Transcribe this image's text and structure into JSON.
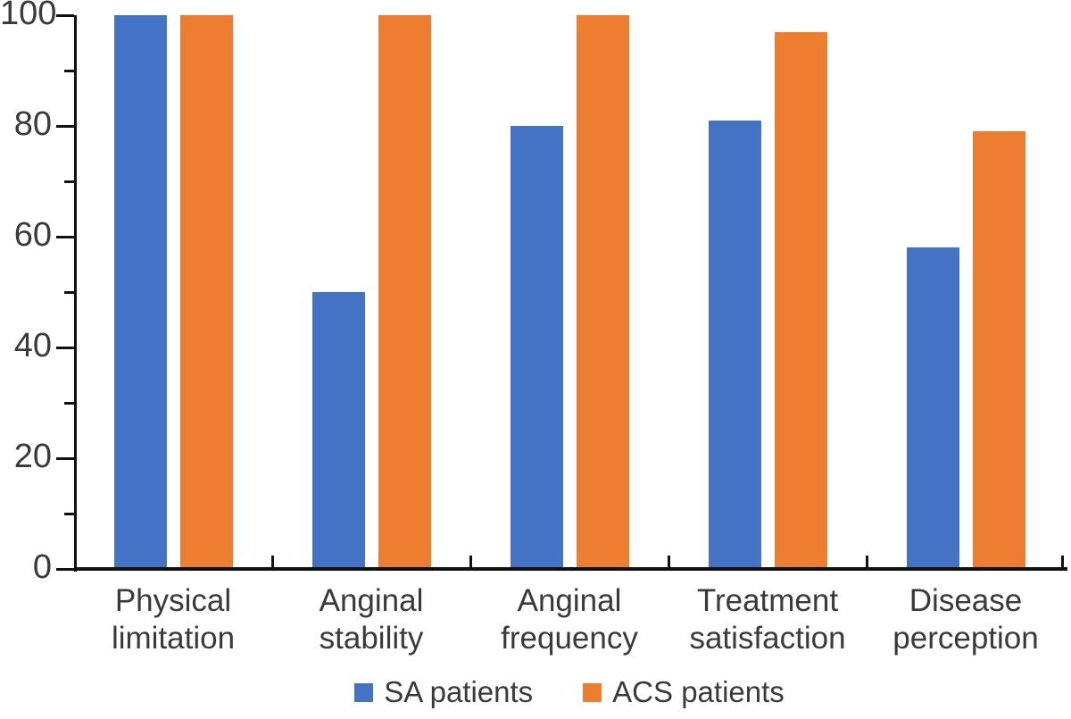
{
  "chart_data": {
    "type": "bar",
    "title": "",
    "categories": [
      "Physical limitation",
      "Anginal stability",
      "Anginal frequency",
      "Treatment satisfaction",
      "Disease perception"
    ],
    "category_label_lines": [
      [
        "Physical",
        "limitation"
      ],
      [
        "Anginal",
        "stability"
      ],
      [
        "Anginal",
        "frequency"
      ],
      [
        "Treatment",
        "satisfaction"
      ],
      [
        "Disease",
        "perception"
      ]
    ],
    "series": [
      {
        "name": "SA patients",
        "color": "#4472C4",
        "values": [
          100,
          50,
          80,
          81,
          58
        ]
      },
      {
        "name": "ACS patients",
        "color": "#ED7D31",
        "values": [
          100,
          100,
          100,
          97,
          79
        ]
      }
    ],
    "ylim": [
      0,
      100
    ],
    "y_major_ticks": [
      0,
      20,
      40,
      60,
      80,
      100
    ],
    "y_minor_ticks": [
      10,
      30,
      50,
      70,
      90
    ],
    "grid": "off",
    "legend_position": "bottom",
    "colors": {
      "axis": "#111111",
      "text": "#3a3a3a",
      "background": "#ffffff"
    }
  }
}
